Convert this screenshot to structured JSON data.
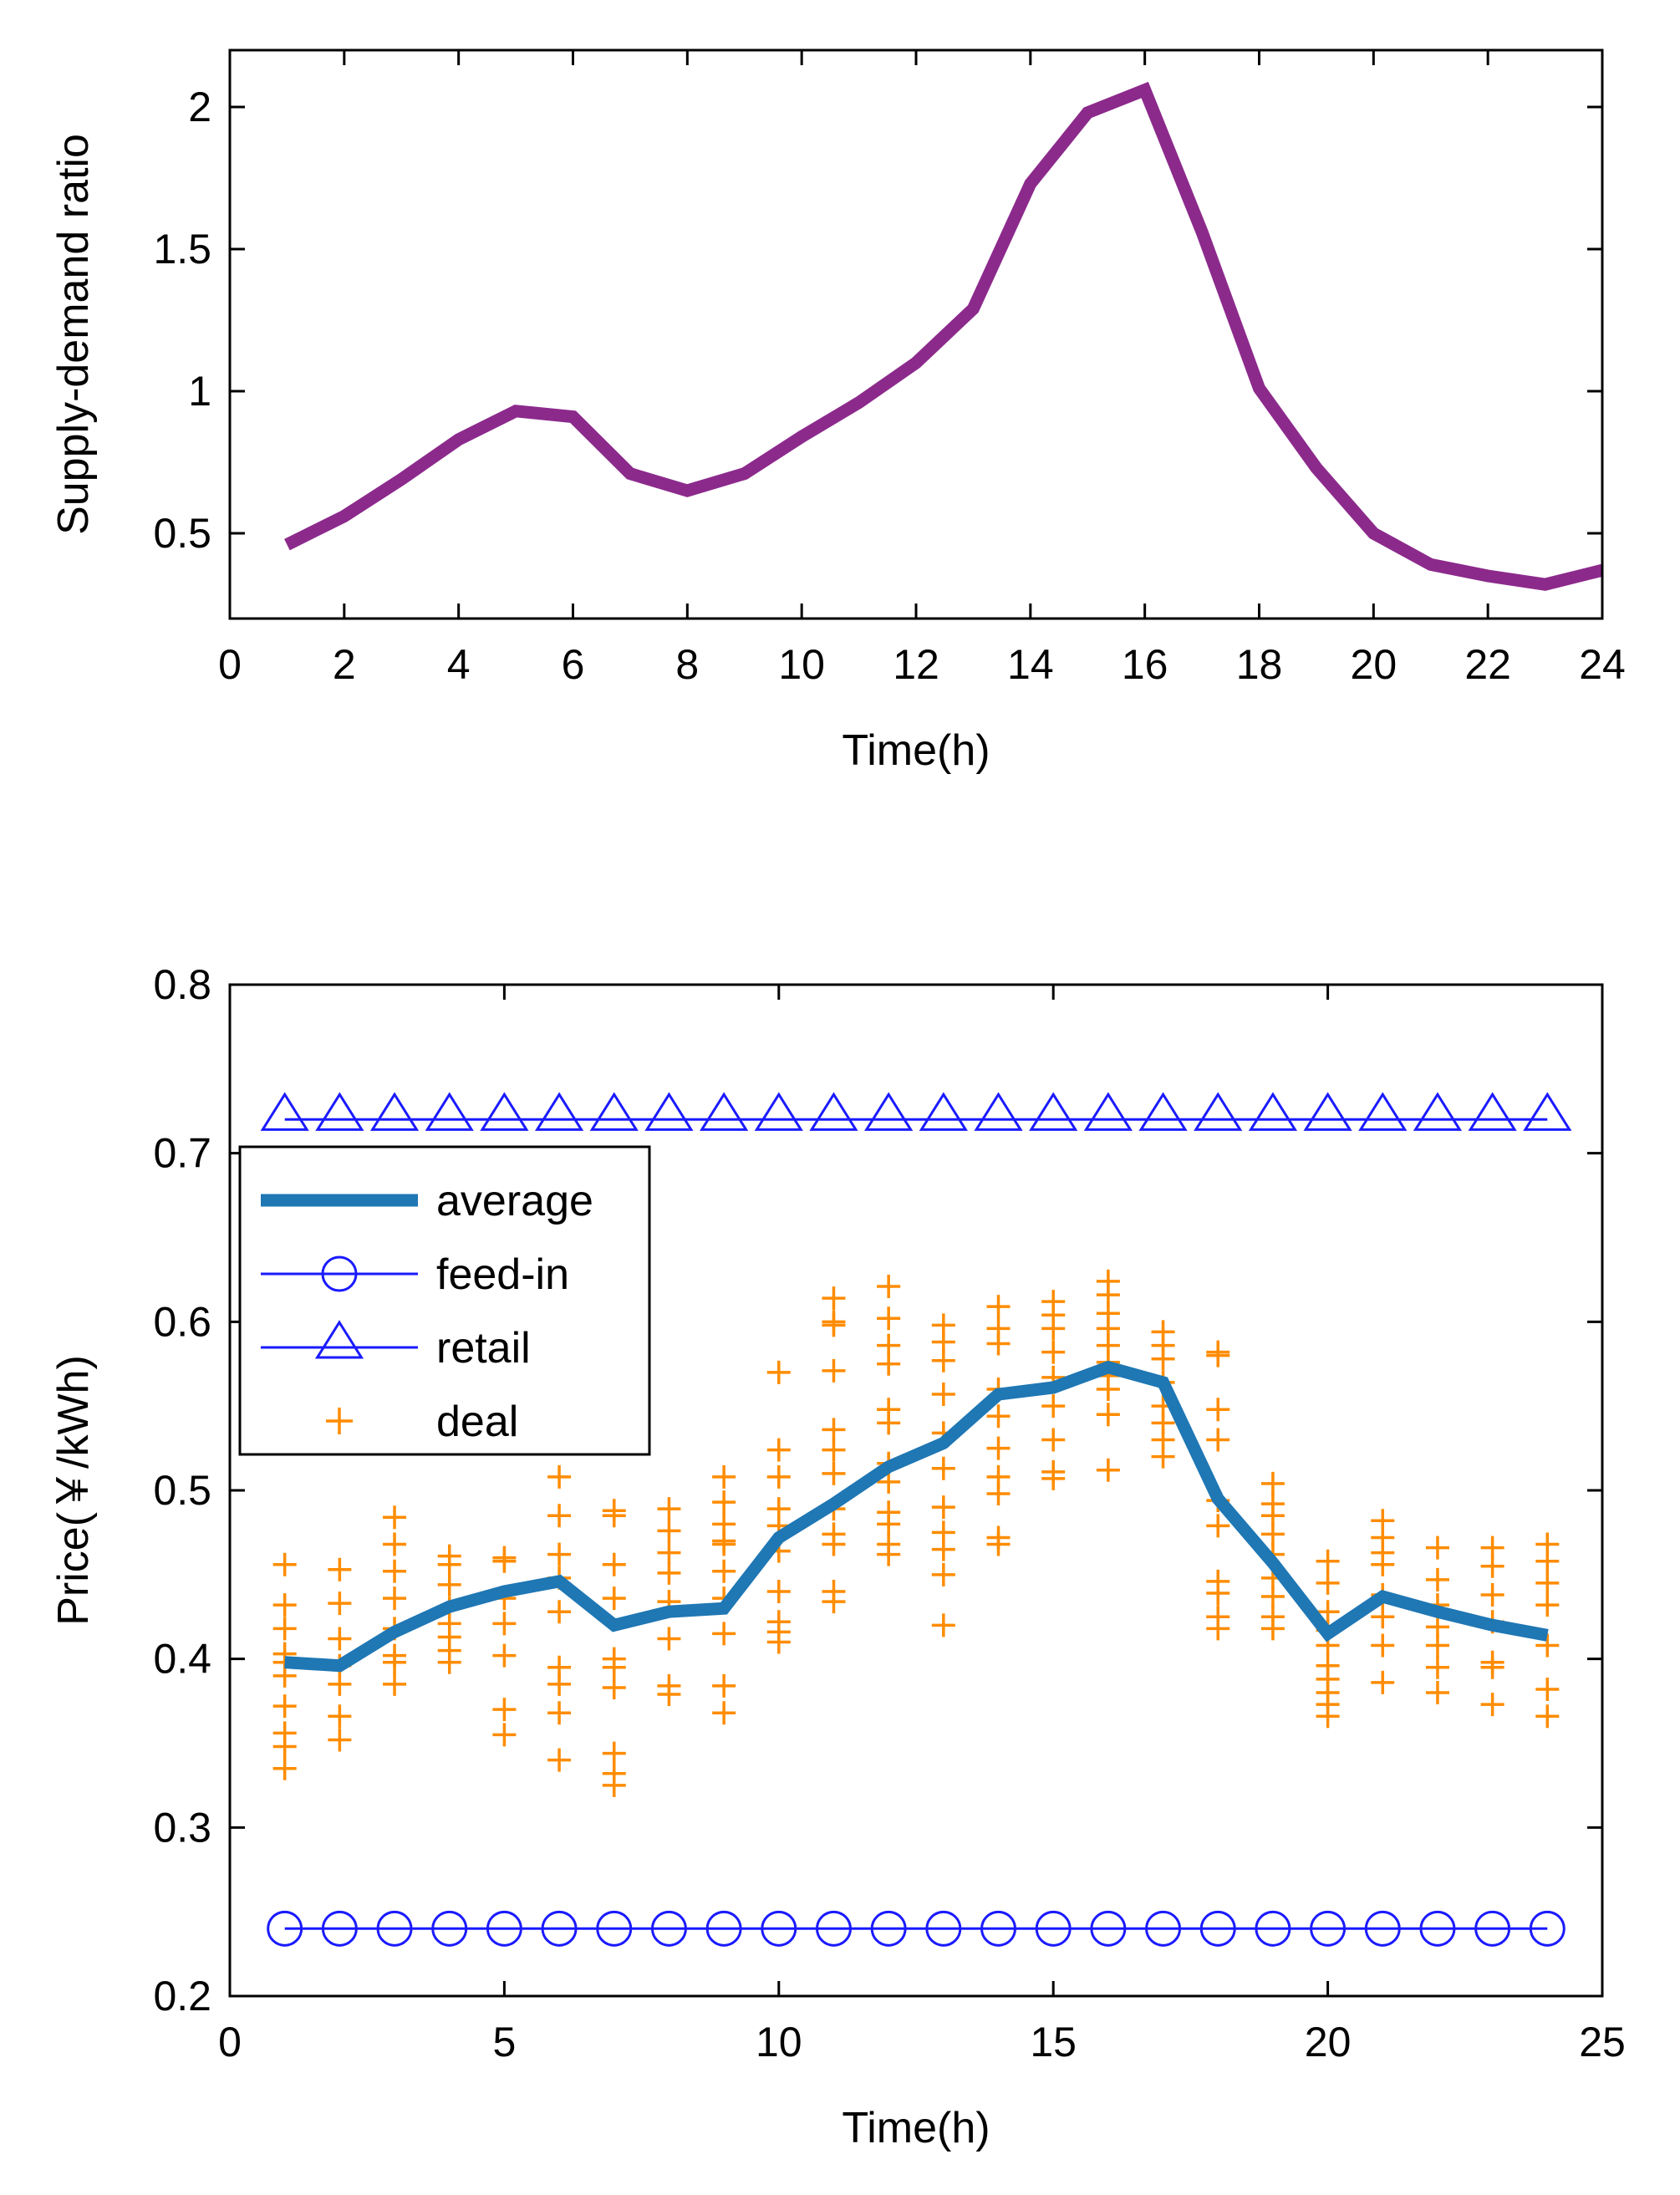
{
  "chart_data": [
    {
      "type": "line",
      "title": "",
      "xlabel": "Time(h)",
      "ylabel": "Supply-demand ratio",
      "xlim": [
        0,
        24
      ],
      "ylim": [
        0.2,
        2.2
      ],
      "xticks": [
        0,
        2,
        4,
        6,
        8,
        10,
        12,
        14,
        16,
        18,
        20,
        22,
        24
      ],
      "yticks": [
        0.5,
        1,
        1.5,
        2
      ],
      "xtick_labels": [
        "0",
        "2",
        "4",
        "6",
        "8",
        "10",
        "12",
        "14",
        "16",
        "18",
        "20",
        "22",
        "24"
      ],
      "ytick_labels": [
        "0.5",
        "1",
        "1.5",
        "2"
      ],
      "grid": false,
      "series": [
        {
          "name": "Supply-demand ratio",
          "color": "#8c2a8c",
          "x": [
            1,
            2,
            3,
            4,
            5,
            6,
            7,
            8,
            9,
            10,
            11,
            12,
            13,
            14,
            15,
            16,
            17,
            18,
            19,
            20,
            21,
            22,
            23,
            24
          ],
          "values": [
            0.46,
            0.56,
            0.69,
            0.83,
            0.93,
            0.91,
            0.71,
            0.65,
            0.71,
            0.84,
            0.96,
            1.1,
            1.29,
            1.73,
            1.98,
            2.06,
            1.56,
            1.01,
            0.73,
            0.5,
            0.39,
            0.35,
            0.32,
            0.37
          ]
        }
      ]
    },
    {
      "type": "line",
      "title": "",
      "xlabel": "Time(h)",
      "ylabel": "Price(￥/kWh)",
      "xlim": [
        0,
        25
      ],
      "ylim": [
        0.2,
        0.8
      ],
      "xticks": [
        0,
        5,
        10,
        15,
        20,
        25
      ],
      "yticks": [
        0.2,
        0.3,
        0.4,
        0.5,
        0.6,
        0.7,
        0.8
      ],
      "xtick_labels": [
        "0",
        "5",
        "10",
        "15",
        "20",
        "25"
      ],
      "ytick_labels": [
        "0.2",
        "0.3",
        "0.4",
        "0.5",
        "0.6",
        "0.7",
        "0.8"
      ],
      "grid": false,
      "legend_position": "upper-left",
      "x": [
        1,
        2,
        3,
        4,
        5,
        6,
        7,
        8,
        9,
        10,
        11,
        12,
        13,
        14,
        15,
        16,
        17,
        18,
        19,
        20,
        21,
        22,
        23,
        24
      ],
      "series": [
        {
          "name": "average",
          "color": "#1f77b4",
          "values": [
            0.398,
            0.396,
            0.416,
            0.431,
            0.44,
            0.446,
            0.42,
            0.428,
            0.43,
            0.472,
            0.492,
            0.514,
            0.528,
            0.557,
            0.561,
            0.573,
            0.564,
            0.495,
            0.457,
            0.415,
            0.437,
            0.428,
            0.42,
            0.414
          ]
        },
        {
          "name": "feed-in",
          "color": "#1a1aff",
          "values": [
            0.24,
            0.24,
            0.24,
            0.24,
            0.24,
            0.24,
            0.24,
            0.24,
            0.24,
            0.24,
            0.24,
            0.24,
            0.24,
            0.24,
            0.24,
            0.24,
            0.24,
            0.24,
            0.24,
            0.24,
            0.24,
            0.24,
            0.24,
            0.24
          ]
        },
        {
          "name": "retail",
          "color": "#1a1aff",
          "values": [
            0.72,
            0.72,
            0.72,
            0.72,
            0.72,
            0.72,
            0.72,
            0.72,
            0.72,
            0.72,
            0.72,
            0.72,
            0.72,
            0.72,
            0.72,
            0.72,
            0.72,
            0.72,
            0.72,
            0.72,
            0.72,
            0.72,
            0.72,
            0.72
          ]
        },
        {
          "name": "deal",
          "color": "#ff8c00",
          "points": [
            [
              1,
              [
                0.456,
                0.432,
                0.418,
                0.403,
                0.398,
                0.39,
                0.372,
                0.356,
                0.348,
                0.335
              ]
            ],
            [
              2,
              [
                0.453,
                0.433,
                0.412,
                0.396,
                0.385,
                0.366,
                0.352
              ]
            ],
            [
              3,
              [
                0.484,
                0.468,
                0.452,
                0.436,
                0.418,
                0.402,
                0.398,
                0.385
              ]
            ],
            [
              4,
              [
                0.461,
                0.456,
                0.444,
                0.43,
                0.421,
                0.413,
                0.405,
                0.398
              ]
            ],
            [
              5,
              [
                0.46,
                0.458,
                0.436,
                0.421,
                0.402,
                0.37,
                0.355
              ]
            ],
            [
              6,
              [
                0.508,
                0.485,
                0.462,
                0.448,
                0.428,
                0.395,
                0.385,
                0.368,
                0.34
              ]
            ],
            [
              7,
              [
                0.488,
                0.485,
                0.456,
                0.436,
                0.4,
                0.395,
                0.383,
                0.344,
                0.332,
                0.325
              ]
            ],
            [
              8,
              [
                0.489,
                0.476,
                0.463,
                0.451,
                0.434,
                0.412,
                0.384,
                0.379
              ]
            ],
            [
              9,
              [
                0.508,
                0.493,
                0.48,
                0.47,
                0.468,
                0.452,
                0.436,
                0.415,
                0.384,
                0.368
              ]
            ],
            [
              10,
              [
                0.57,
                0.524,
                0.508,
                0.489,
                0.479,
                0.464,
                0.44,
                0.422,
                0.416,
                0.41
              ]
            ],
            [
              11,
              [
                0.614,
                0.6,
                0.598,
                0.571,
                0.536,
                0.524,
                0.51,
                0.489,
                0.474,
                0.468,
                0.44,
                0.434
              ]
            ],
            [
              12,
              [
                0.621,
                0.602,
                0.586,
                0.575,
                0.548,
                0.54,
                0.516,
                0.505,
                0.487,
                0.48,
                0.468,
                0.462
              ]
            ],
            [
              13,
              [
                0.598,
                0.588,
                0.577,
                0.557,
                0.534,
                0.513,
                0.49,
                0.475,
                0.465,
                0.45,
                0.42
              ]
            ],
            [
              14,
              [
                0.609,
                0.596,
                0.587,
                0.56,
                0.544,
                0.525,
                0.508,
                0.498,
                0.472,
                0.468
              ]
            ],
            [
              15,
              [
                0.612,
                0.604,
                0.596,
                0.582,
                0.567,
                0.55,
                0.53,
                0.511,
                0.507
              ]
            ],
            [
              16,
              [
                0.624,
                0.616,
                0.605,
                0.596,
                0.586,
                0.576,
                0.568,
                0.56,
                0.545,
                0.512
              ]
            ],
            [
              17,
              [
                0.594,
                0.586,
                0.578,
                0.564,
                0.55,
                0.54,
                0.53,
                0.52
              ]
            ],
            [
              18,
              [
                0.582,
                0.58,
                0.548,
                0.53,
                0.494,
                0.479,
                0.446,
                0.439,
                0.425,
                0.418
              ]
            ],
            [
              19,
              [
                0.504,
                0.492,
                0.485,
                0.474,
                0.462,
                0.448,
                0.437,
                0.425,
                0.418
              ]
            ],
            [
              20,
              [
                0.458,
                0.445,
                0.428,
                0.417,
                0.408,
                0.396,
                0.388,
                0.38,
                0.373,
                0.366
              ]
            ],
            [
              21,
              [
                0.482,
                0.472,
                0.463,
                0.456,
                0.438,
                0.425,
                0.408,
                0.386
              ]
            ],
            [
              22,
              [
                0.466,
                0.447,
                0.432,
                0.419,
                0.408,
                0.395,
                0.38
              ]
            ],
            [
              23,
              [
                0.466,
                0.455,
                0.438,
                0.422,
                0.398,
                0.395,
                0.373
              ]
            ],
            [
              24,
              [
                0.468,
                0.458,
                0.445,
                0.432,
                0.408,
                0.382,
                0.366
              ]
            ]
          ]
        }
      ]
    }
  ]
}
